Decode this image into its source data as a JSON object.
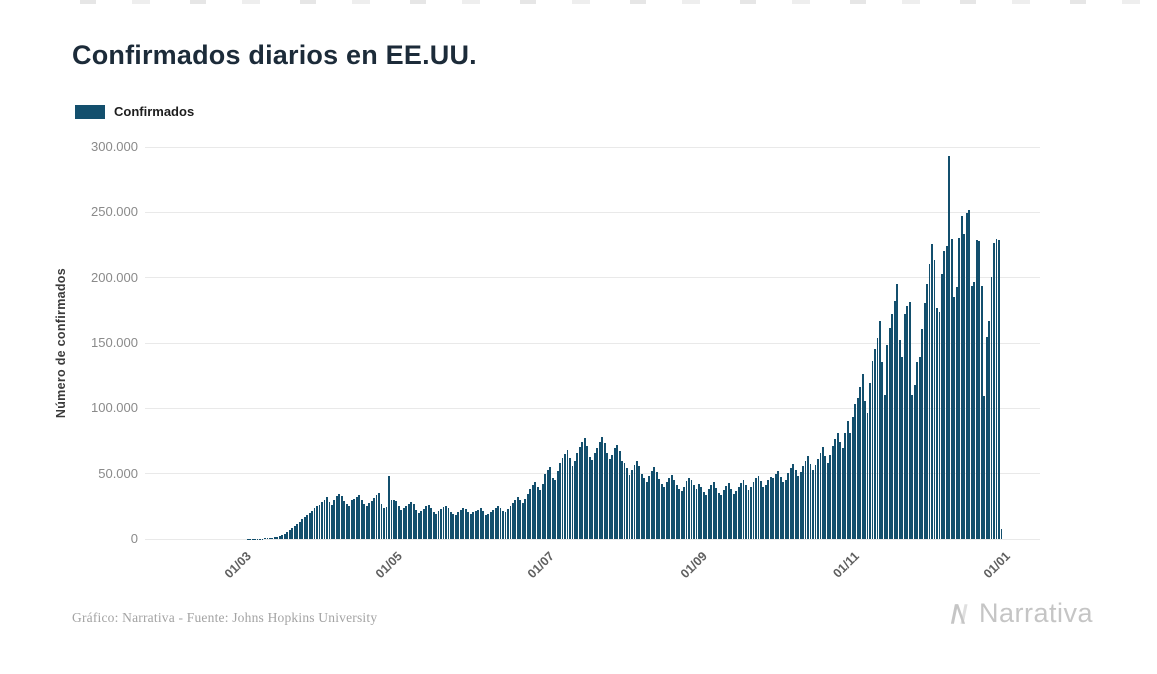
{
  "page": {
    "background": "#ffffff"
  },
  "chart_data": {
    "type": "bar",
    "title": "Confirmados diarios en EE.UU.",
    "ylabel": "Número de confirmados",
    "xlabel": "",
    "legend": [
      "Confirmados"
    ],
    "legend_position": "top-left",
    "grid": "horizontal",
    "color": "#134f6d",
    "ylim": [
      0,
      300000
    ],
    "yticks": [
      {
        "label": "0",
        "value": 0
      },
      {
        "label": "50.000",
        "value": 50000
      },
      {
        "label": "100.000",
        "value": 100000
      },
      {
        "label": "150.000",
        "value": 150000
      },
      {
        "label": "200.000",
        "value": 200000
      },
      {
        "label": "250.000",
        "value": 250000
      },
      {
        "label": "300.000",
        "value": 300000
      }
    ],
    "xticks": [
      {
        "label": "01/03",
        "index": 39
      },
      {
        "label": "01/05",
        "index": 100
      },
      {
        "label": "01/07",
        "index": 161
      },
      {
        "label": "01/09",
        "index": 223
      },
      {
        "label": "01/11",
        "index": 284
      },
      {
        "label": "01/01",
        "index": 345
      }
    ],
    "values": [
      1,
      0,
      1,
      0,
      2,
      1,
      2,
      1,
      0,
      3,
      2,
      1,
      2,
      3,
      2,
      1,
      4,
      3,
      2,
      5,
      4,
      3,
      6,
      5,
      4,
      8,
      6,
      7,
      9,
      8,
      10,
      12,
      11,
      14,
      16,
      18,
      20,
      24,
      30,
      35,
      45,
      60,
      80,
      100,
      130,
      170,
      220,
      300,
      400,
      550,
      700,
      900,
      1200,
      1700,
      2300,
      3000,
      4000,
      5500,
      7000,
      8500,
      10000,
      11500,
      13000,
      15000,
      17000,
      18500,
      20000,
      21500,
      23500,
      25000,
      26000,
      28000,
      30000,
      32500,
      28000,
      26000,
      30000,
      33000,
      34500,
      33000,
      29000,
      27000,
      25500,
      29500,
      31000,
      32000,
      33500,
      30000,
      26500,
      25000,
      27500,
      29000,
      31500,
      34000,
      35500,
      27000,
      23500,
      24500,
      48000,
      29500,
      30000,
      29000,
      25000,
      22000,
      23500,
      25000,
      27000,
      28500,
      26500,
      22500,
      20000,
      21500,
      23000,
      25500,
      26000,
      24000,
      21000,
      19500,
      21500,
      23000,
      24500,
      25500,
      23500,
      20500,
      19000,
      18500,
      21000,
      22500,
      24000,
      23000,
      21000,
      19500,
      20500,
      21500,
      22500,
      23500,
      21500,
      18500,
      19500,
      21000,
      22500,
      24000,
      25500,
      23500,
      21500,
      20500,
      23000,
      25500,
      27500,
      30000,
      32000,
      29500,
      27500,
      31000,
      34500,
      38000,
      41000,
      43500,
      40000,
      37500,
      42000,
      50000,
      53000,
      55000,
      47000,
      45000,
      52000,
      58000,
      62000,
      65000,
      68000,
      62000,
      56000,
      60000,
      66000,
      70500,
      74000,
      77500,
      71000,
      63000,
      60500,
      65500,
      70000,
      74500,
      78000,
      73500,
      66000,
      61500,
      64500,
      69500,
      72000,
      67500,
      60000,
      58000,
      54000,
      49000,
      52500,
      56500,
      59500,
      55500,
      50000,
      46500,
      44000,
      48500,
      52000,
      55000,
      51000,
      46000,
      42000,
      39500,
      43500,
      46500,
      49000,
      45500,
      41500,
      38500,
      36500,
      40000,
      44500,
      47000,
      45000,
      41000,
      38500,
      42000,
      39500,
      36000,
      34000,
      38500,
      41500,
      43500,
      39000,
      35000,
      33500,
      37500,
      40500,
      42500,
      38500,
      34500,
      36500,
      40000,
      43000,
      45500,
      41500,
      37500,
      39500,
      43500,
      46500,
      48500,
      44500,
      39500,
      41500,
      45000,
      47500,
      46500,
      49500,
      52000,
      47500,
      43500,
      45500,
      50500,
      54500,
      57500,
      52500,
      48000,
      51000,
      55500,
      59500,
      63500,
      57500,
      52500,
      56500,
      61500,
      65500,
      70500,
      63500,
      58500,
      64500,
      71500,
      76500,
      81500,
      74500,
      69500,
      81500,
      90500,
      81500,
      93500,
      103500,
      108000,
      116000,
      126500,
      105500,
      96500,
      119500,
      136000,
      145500,
      153500,
      166500,
      135500,
      110000,
      148500,
      161500,
      172500,
      182500,
      195500,
      152500,
      139000,
      172500,
      178500,
      181500,
      110000,
      117500,
      135500,
      139500,
      160500,
      180500,
      195500,
      210500,
      225500,
      213500,
      176500,
      173500,
      202500,
      220500,
      224500,
      293500,
      229500,
      185500,
      192500,
      230500,
      247000,
      233500,
      249500,
      251500,
      193500,
      196500,
      229000,
      228000,
      193500,
      109500,
      154500,
      166500,
      200500,
      226500,
      229500,
      228500,
      7500
    ]
  },
  "footer": {
    "credit": "Gráfico: Narrativa - Fuente: Johns Hopkins University",
    "brand": "Narrativa"
  }
}
